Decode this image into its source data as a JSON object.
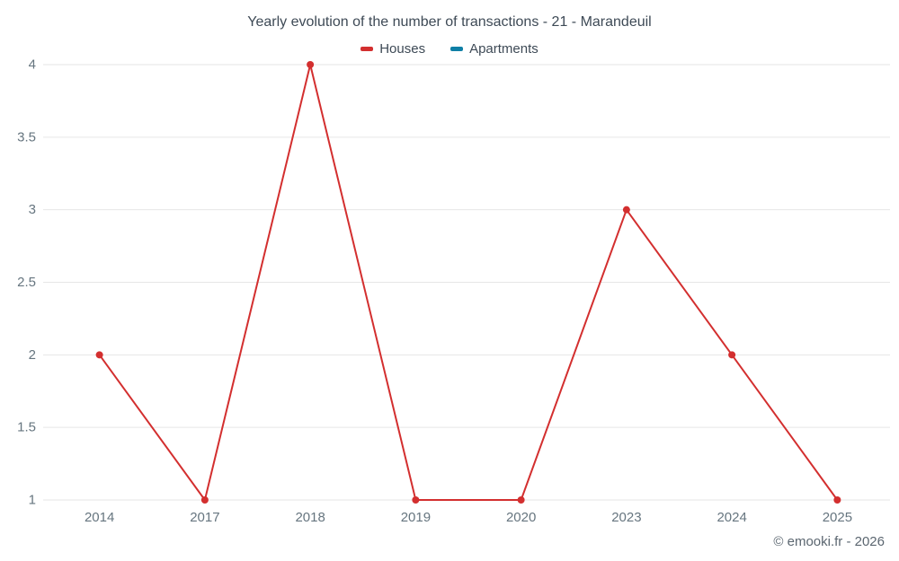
{
  "chart_data": {
    "type": "line",
    "title": "Yearly evolution of the number of transactions - 21 - Marandeuil",
    "categories": [
      "2014",
      "2017",
      "2018",
      "2019",
      "2020",
      "2023",
      "2024",
      "2025"
    ],
    "series": [
      {
        "name": "Houses",
        "color": "#d32f2f",
        "values": [
          2,
          1,
          4,
          1,
          1,
          3,
          2,
          1
        ]
      },
      {
        "name": "Apartments",
        "color": "#0f7fa6",
        "values": []
      }
    ],
    "xlabel": "",
    "ylabel": "",
    "ylim": [
      1,
      4
    ],
    "yticks": [
      1,
      1.5,
      2,
      2.5,
      3,
      3.5,
      4
    ],
    "grid": true,
    "legend_position": "top",
    "tick_label_color": "#66757f",
    "grid_color": "#e6e6e6",
    "marker_radius": 4,
    "line_width": 2
  },
  "footer": {
    "copyright": "© emooki.fr - 2026"
  }
}
